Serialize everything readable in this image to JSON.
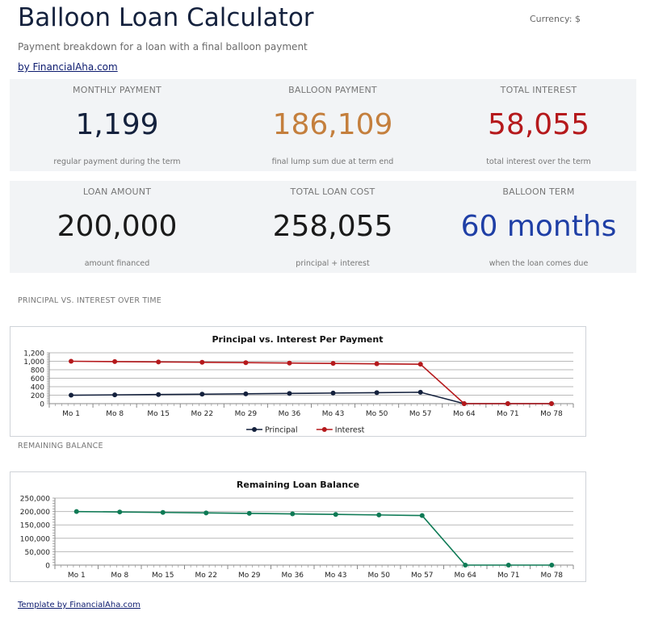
{
  "page": {
    "title": "Balloon Loan Calculator",
    "currency": "Currency: $",
    "subtitle": "Payment breakdown for a loan with a final balloon payment",
    "byline": "by FinancialAha.com",
    "footer": "Template by FinancialAha.com"
  },
  "colors": {
    "navy": "#14213d",
    "orange": "#c47f3d",
    "red": "#b5191c",
    "blue": "#1f3fa6",
    "green": "#0e7a55",
    "card_bg": "#f2f4f6"
  },
  "cards": [
    {
      "label": "MONTHLY PAYMENT",
      "value": "1,199",
      "desc": "regular payment during the term",
      "color": "#14213d"
    },
    {
      "label": "BALLOON PAYMENT",
      "value": "186,109",
      "desc": "final lump sum due at term end",
      "color": "#c47f3d"
    },
    {
      "label": "TOTAL INTEREST",
      "value": "58,055",
      "desc": "total interest over the term",
      "color": "#b5191c"
    },
    {
      "label": "LOAN AMOUNT",
      "value": "200,000",
      "desc": "amount financed",
      "color": "#1a1a1a"
    },
    {
      "label": "TOTAL LOAN COST",
      "value": "258,055",
      "desc": "principal + interest",
      "color": "#1a1a1a"
    },
    {
      "label": "BALLOON TERM",
      "value": "60 months",
      "desc": "when the loan comes due",
      "color": "#1f3fa6"
    }
  ],
  "sections": {
    "chart1_label": "PRINCIPAL VS. INTEREST OVER TIME",
    "chart2_label": "REMAINING BALANCE"
  },
  "chart_data": [
    {
      "type": "line",
      "title": "Principal vs. Interest Per Payment",
      "categories": [
        "Mo 1",
        "Mo 8",
        "Mo 15",
        "Mo 22",
        "Mo 29",
        "Mo 36",
        "Mo 43",
        "Mo 50",
        "Mo 57",
        "Mo 64",
        "Mo 71",
        "Mo 78"
      ],
      "yticks": [
        "0",
        "200",
        "400",
        "600",
        "800",
        "1,000",
        "1,200"
      ],
      "ylim": [
        0,
        1200
      ],
      "grid": true,
      "legend": "bottom",
      "series": [
        {
          "name": "Principal",
          "color": "#14213d",
          "values": [
            199,
            207,
            215,
            223,
            232,
            241,
            250,
            259,
            269,
            0,
            0,
            0
          ]
        },
        {
          "name": "Interest",
          "color": "#b5191c",
          "values": [
            1000,
            992,
            984,
            976,
            967,
            958,
            949,
            940,
            930,
            0,
            0,
            0
          ]
        }
      ]
    },
    {
      "type": "line",
      "title": "Remaining Loan Balance",
      "categories": [
        "Mo 1",
        "Mo 8",
        "Mo 15",
        "Mo 22",
        "Mo 29",
        "Mo 36",
        "Mo 43",
        "Mo 50",
        "Mo 57",
        "Mo 64",
        "Mo 71",
        "Mo 78"
      ],
      "yticks": [
        "0",
        "50,000",
        "100,000",
        "150,000",
        "200,000",
        "250,000"
      ],
      "ylim": [
        0,
        250000
      ],
      "grid": true,
      "legend": "none",
      "series": [
        {
          "name": "",
          "color": "#0e7a55",
          "values": [
            199801,
            198225,
            196535,
            194782,
            192964,
            191078,
            189122,
            187093,
            184988,
            0,
            0,
            0
          ]
        }
      ]
    }
  ]
}
